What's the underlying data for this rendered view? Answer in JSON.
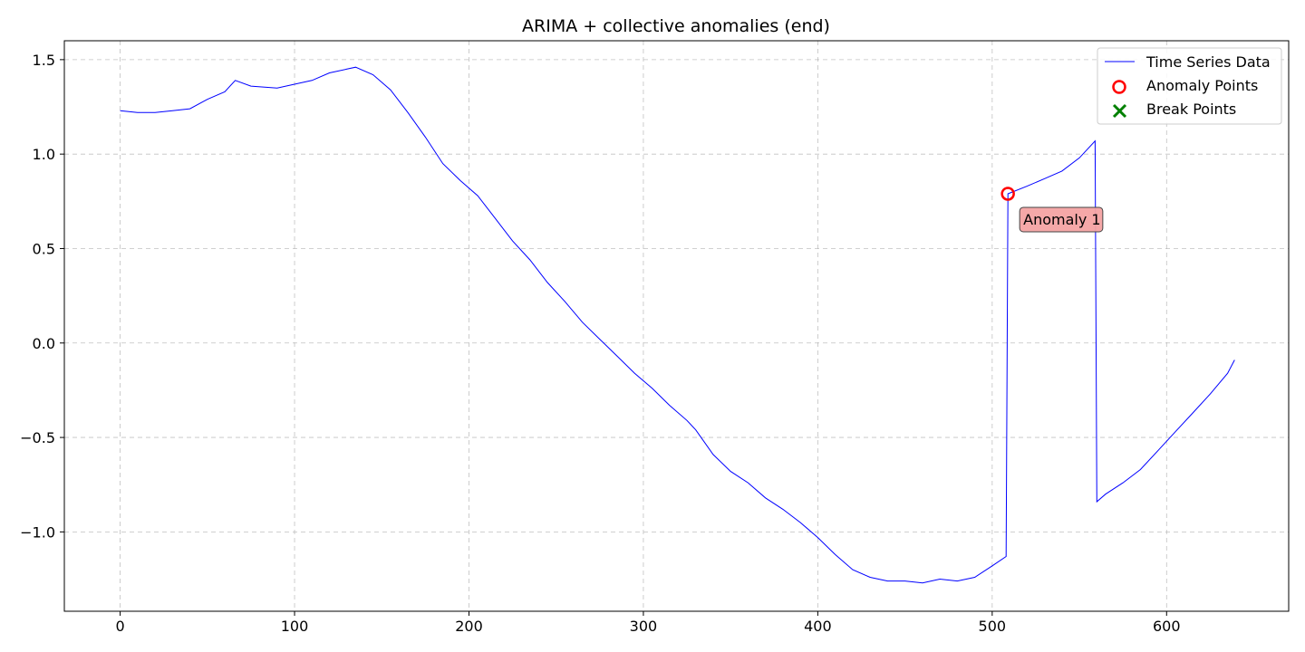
{
  "chart_data": {
    "type": "line",
    "title": "ARIMA + collective anomalies (end)",
    "xlabel": "",
    "ylabel": "",
    "xlim": [
      -32,
      670
    ],
    "ylim": [
      -1.42,
      1.6
    ],
    "xticks": [
      0,
      100,
      200,
      300,
      400,
      500,
      600
    ],
    "xtick_labels": [
      "0",
      "100",
      "200",
      "300",
      "400",
      "500",
      "600"
    ],
    "yticks": [
      1.5,
      1.0,
      0.5,
      0.0,
      -0.5,
      -1.0
    ],
    "ytick_labels": [
      "1.5",
      "1.0",
      "0.5",
      "0.0",
      "−0.5",
      "−1.0"
    ],
    "grid": true,
    "legend_position": "top-right",
    "series": [
      {
        "name": "Time Series Data",
        "color": "#0000ff",
        "style": "line",
        "x": [
          0,
          10,
          20,
          30,
          40,
          50,
          60,
          66,
          75,
          90,
          100,
          110,
          120,
          130,
          135,
          145,
          155,
          165,
          175,
          185,
          195,
          205,
          215,
          225,
          235,
          245,
          255,
          265,
          275,
          285,
          295,
          305,
          315,
          325,
          330,
          340,
          350,
          360,
          370,
          380,
          390,
          400,
          410,
          420,
          430,
          440,
          450,
          460,
          470,
          480,
          490,
          500,
          508,
          509,
          509,
          520,
          530,
          540,
          550,
          559,
          559,
          560,
          565,
          575,
          585,
          595,
          605,
          615,
          625,
          635,
          639
        ],
        "y": [
          1.23,
          1.22,
          1.22,
          1.23,
          1.24,
          1.29,
          1.33,
          1.39,
          1.36,
          1.35,
          1.37,
          1.39,
          1.43,
          1.45,
          1.46,
          1.42,
          1.34,
          1.22,
          1.09,
          0.95,
          0.86,
          0.78,
          0.66,
          0.54,
          0.44,
          0.32,
          0.22,
          0.11,
          0.02,
          -0.07,
          -0.16,
          -0.24,
          -0.33,
          -0.41,
          -0.46,
          -0.59,
          -0.68,
          -0.74,
          -0.82,
          -0.88,
          -0.95,
          -1.03,
          -1.12,
          -1.2,
          -1.24,
          -1.26,
          -1.26,
          -1.27,
          -1.25,
          -1.26,
          -1.24,
          -1.18,
          -1.13,
          0.78,
          0.79,
          0.83,
          0.87,
          0.91,
          0.98,
          1.07,
          1.06,
          -0.84,
          -0.8,
          -0.74,
          -0.67,
          -0.57,
          -0.47,
          -0.37,
          -0.27,
          -0.16,
          -0.09
        ]
      },
      {
        "name": "Anomaly Points",
        "color": "#ff0000",
        "style": "marker-circle",
        "x": [
          509
        ],
        "y": [
          0.79
        ]
      },
      {
        "name": "Break Points",
        "color": "#008000",
        "style": "marker-x",
        "x": [],
        "y": []
      }
    ],
    "annotations": [
      {
        "text": "Anomaly 1",
        "x": 509,
        "y": 0.79,
        "box_color": "#f4a3a3"
      }
    ]
  }
}
